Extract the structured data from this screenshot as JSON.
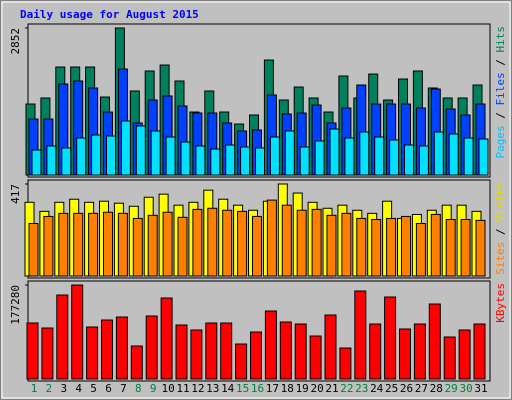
{
  "title": "Daily usage for August 2015",
  "chart_data": [
    {
      "type": "bar",
      "ylim": [
        0,
        2852
      ],
      "yticks": [
        2852
      ],
      "legend_separator": " / ",
      "series": [
        {
          "name": "Hits",
          "color": "#00805c",
          "label_color": "#00805c",
          "values": [
            1377,
            1494,
            2095,
            2095,
            2095,
            1513,
            2852,
            1630,
            2018,
            2134,
            1824,
            1222,
            1630,
            1222,
            989,
            1164,
            2231,
            1455,
            1707,
            1494,
            1222,
            1921,
            1494,
            1959,
            1455,
            1862,
            2018,
            1688,
            1494,
            1494,
            1746
          ]
        },
        {
          "name": "Files",
          "color": "#0040ff",
          "label_color": "#0040ff",
          "values": [
            1086,
            1086,
            1765,
            1824,
            1688,
            1222,
            2056,
            1009,
            1455,
            1533,
            1339,
            1203,
            1203,
            1009,
            854,
            873,
            1552,
            1183,
            1203,
            1358,
            1009,
            1300,
            1746,
            1377,
            1377,
            1377,
            1300,
            1668,
            1280,
            1164,
            1377
          ]
        },
        {
          "name": "Pages",
          "color": "#00e0ff",
          "label_color": "#00c0ff",
          "values": [
            485,
            563,
            524,
            718,
            776,
            757,
            1048,
            951,
            854,
            737,
            640,
            563,
            504,
            582,
            543,
            524,
            737,
            854,
            543,
            660,
            892,
            718,
            834,
            737,
            679,
            582,
            563,
            834,
            796,
            718,
            698
          ]
        }
      ]
    },
    {
      "type": "bar",
      "ylim": [
        0,
        417
      ],
      "yticks": [
        417
      ],
      "legend_separator": " / ",
      "series": [
        {
          "name": "Visits",
          "color": "#ffff00",
          "label_color": "#e0e000",
          "values": [
            334,
            293,
            334,
            348,
            334,
            339,
            330,
            316,
            357,
            371,
            321,
            334,
            389,
            348,
            321,
            298,
            339,
            417,
            376,
            334,
            307,
            321,
            298,
            284,
            339,
            261,
            279,
            298,
            321,
            321,
            293
          ]
        },
        {
          "name": "Sites",
          "color": "#ff8000",
          "label_color": "#ff8000",
          "values": [
            238,
            270,
            284,
            284,
            284,
            289,
            284,
            261,
            275,
            289,
            266,
            302,
            307,
            298,
            293,
            270,
            344,
            321,
            298,
            302,
            275,
            284,
            261,
            256,
            261,
            270,
            238,
            279,
            256,
            256,
            252
          ]
        }
      ]
    },
    {
      "type": "bar",
      "ylim": [
        0,
        177280
      ],
      "yticks": [
        177280
      ],
      "legend_separator": " / ",
      "categories": [
        "1",
        "2",
        "3",
        "4",
        "5",
        "6",
        "7",
        "8",
        "9",
        "10",
        "11",
        "12",
        "13",
        "14",
        "15",
        "16",
        "17",
        "18",
        "19",
        "20",
        "21",
        "22",
        "23",
        "24",
        "25",
        "26",
        "27",
        "28",
        "29",
        "30",
        "31"
      ],
      "category_colors": [
        "#008040",
        "#008040",
        "#000000",
        "#000000",
        "#000000",
        "#000000",
        "#000000",
        "#008040",
        "#008040",
        "#000000",
        "#000000",
        "#000000",
        "#000000",
        "#000000",
        "#008040",
        "#008040",
        "#000000",
        "#000000",
        "#000000",
        "#000000",
        "#000000",
        "#008040",
        "#008040",
        "#000000",
        "#000000",
        "#000000",
        "#000000",
        "#000000",
        "#008040",
        "#008040",
        "#000000"
      ],
      "series": [
        {
          "name": "KBytes",
          "color": "#ff0000",
          "label_color": "#ff0000",
          "values": [
            105616,
            96186,
            158424,
            177280,
            98072,
            111274,
            116932,
            62238,
            118818,
            152766,
            101844,
            92414,
            105616,
            105616,
            66010,
            88642,
            128248,
            107502,
            103730,
            81098,
            120704,
            58466,
            165968,
            103730,
            154652,
            94300,
            103730,
            141450,
            79212,
            92414,
            103730
          ]
        }
      ]
    }
  ]
}
